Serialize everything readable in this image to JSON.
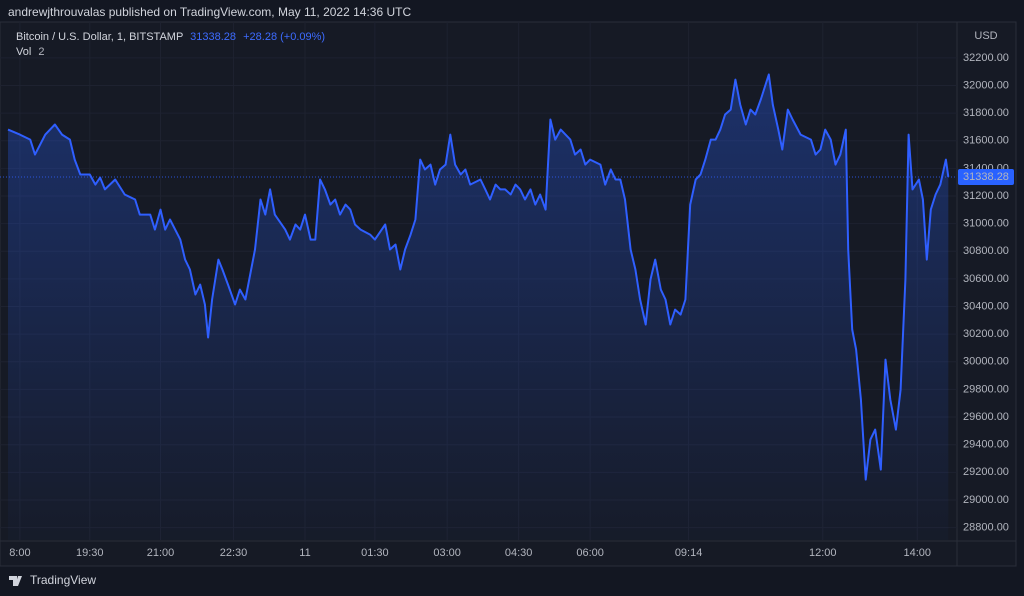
{
  "header": {
    "publisher": "andrewjthrouvalas published on TradingView.com, May 11, 2022 14:36 UTC"
  },
  "footer": {
    "brand": "TradingView"
  },
  "chart_data": {
    "type": "line",
    "title": "Bitcoin / U.S. Dollar, 1, BITSTAMP",
    "change": "+28.28 (+0.09%)",
    "volume_label": "Vol",
    "volume_value": "2",
    "y_axis_unit": "USD",
    "grid": true,
    "xlim": [
      0,
      1195
    ],
    "xticks": [
      {
        "value": 15,
        "label": "8:00"
      },
      {
        "value": 103,
        "label": "19:30"
      },
      {
        "value": 192,
        "label": "21:00"
      },
      {
        "value": 284,
        "label": "22:30"
      },
      {
        "value": 374,
        "label": "11"
      },
      {
        "value": 462,
        "label": "01:30"
      },
      {
        "value": 553,
        "label": "03:00"
      },
      {
        "value": 643,
        "label": "04:30"
      },
      {
        "value": 733,
        "label": "06:00"
      },
      {
        "value": 857,
        "label": "09:14"
      },
      {
        "value": 1026,
        "label": "12:00"
      },
      {
        "value": 1145,
        "label": "14:00"
      }
    ],
    "ylim": [
      28710,
      32460
    ],
    "yticks": [
      {
        "value": 28800,
        "label": "28800.00"
      },
      {
        "value": 29000,
        "label": "29000.00"
      },
      {
        "value": 29200,
        "label": "29200.00"
      },
      {
        "value": 29400,
        "label": "29400.00"
      },
      {
        "value": 29600,
        "label": "29600.00"
      },
      {
        "value": 29800,
        "label": "29800.00"
      },
      {
        "value": 30000,
        "label": "30000.00"
      },
      {
        "value": 30200,
        "label": "30200.00"
      },
      {
        "value": 30400,
        "label": "30400.00"
      },
      {
        "value": 30600,
        "label": "30600.00"
      },
      {
        "value": 30800,
        "label": "30800.00"
      },
      {
        "value": 31000,
        "label": "31000.00"
      },
      {
        "value": 31200,
        "label": "31200.00"
      },
      {
        "value": 31400,
        "label": "31400.00"
      },
      {
        "value": 31600,
        "label": "31600.00"
      },
      {
        "value": 31800,
        "label": "31800.00"
      },
      {
        "value": 32000,
        "label": "32000.00"
      },
      {
        "value": 32200,
        "label": "32200.00"
      }
    ],
    "x": [
      0,
      15,
      28,
      34,
      47,
      59,
      68,
      78,
      84,
      91,
      103,
      110,
      116,
      122,
      135,
      147,
      160,
      166,
      179,
      185,
      192,
      198,
      204,
      217,
      223,
      229,
      236,
      242,
      248,
      252,
      257,
      265,
      270,
      277,
      286,
      292,
      299,
      305,
      311,
      318,
      324,
      330,
      336,
      349,
      355,
      362,
      368,
      374,
      381,
      387,
      393,
      399,
      406,
      412,
      418,
      425,
      431,
      437,
      444,
      456,
      462,
      475,
      481,
      488,
      494,
      500,
      507,
      513,
      519,
      525,
      532,
      538,
      544,
      551,
      557,
      563,
      570,
      576,
      582,
      595,
      601,
      607,
      614,
      620,
      626,
      633,
      639,
      645,
      651,
      658,
      664,
      670,
      677,
      683,
      689,
      696,
      702,
      708,
      714,
      721,
      727,
      733,
      746,
      752,
      759,
      765,
      771,
      777,
      784,
      790,
      796,
      803,
      809,
      815,
      822,
      828,
      834,
      840,
      847,
      853,
      859,
      866,
      872,
      878,
      885,
      891,
      897,
      903,
      910,
      916,
      922,
      929,
      935,
      941,
      948,
      958,
      963,
      970,
      975,
      982,
      988,
      998,
      1011,
      1017,
      1023,
      1029,
      1036,
      1042,
      1048,
      1055,
      1058,
      1063,
      1068,
      1074,
      1080,
      1086,
      1092,
      1099,
      1105,
      1111,
      1118,
      1124,
      1130,
      1134,
      1139,
      1147,
      1152,
      1157,
      1162,
      1168,
      1174,
      1181,
      1184
    ],
    "series": [
      {
        "name": "Bitcoin / U.S. Dollar",
        "color": "#2f5fff",
        "values": [
          31681,
          31645,
          31609,
          31500,
          31645,
          31718,
          31645,
          31609,
          31464,
          31356,
          31356,
          31283,
          31334,
          31248,
          31320,
          31211,
          31175,
          31066,
          31066,
          30957,
          31102,
          30957,
          31030,
          30885,
          30740,
          30668,
          30487,
          30559,
          30415,
          30176,
          30451,
          30740,
          30668,
          30559,
          30415,
          30523,
          30451,
          30632,
          30813,
          31175,
          31066,
          31248,
          31066,
          30957,
          30885,
          30994,
          30957,
          31066,
          30885,
          30885,
          31320,
          31248,
          31138,
          31175,
          31066,
          31138,
          31102,
          30994,
          30957,
          30921,
          30885,
          30994,
          30813,
          30849,
          30668,
          30813,
          30921,
          31030,
          31464,
          31392,
          31428,
          31283,
          31392,
          31428,
          31645,
          31428,
          31356,
          31392,
          31283,
          31320,
          31248,
          31175,
          31283,
          31248,
          31248,
          31211,
          31283,
          31248,
          31175,
          31248,
          31138,
          31211,
          31102,
          31754,
          31609,
          31681,
          31645,
          31609,
          31500,
          31537,
          31428,
          31464,
          31428,
          31283,
          31392,
          31320,
          31320,
          31175,
          30813,
          30668,
          30451,
          30270,
          30596,
          30740,
          30523,
          30451,
          30270,
          30378,
          30342,
          30451,
          31138,
          31320,
          31356,
          31464,
          31609,
          31609,
          31681,
          31790,
          31826,
          32043,
          31862,
          31718,
          31826,
          31790,
          31899,
          32080,
          31862,
          31681,
          31537,
          31826,
          31754,
          31645,
          31609,
          31500,
          31537,
          31681,
          31609,
          31428,
          31500,
          31681,
          30813,
          30234,
          30089,
          29727,
          29147,
          29437,
          29509,
          29220,
          30016,
          29727,
          29509,
          29799,
          30596,
          31645,
          31248,
          31320,
          31175,
          30740,
          31102,
          31211,
          31283,
          31464,
          31338.28
        ]
      }
    ]
  }
}
